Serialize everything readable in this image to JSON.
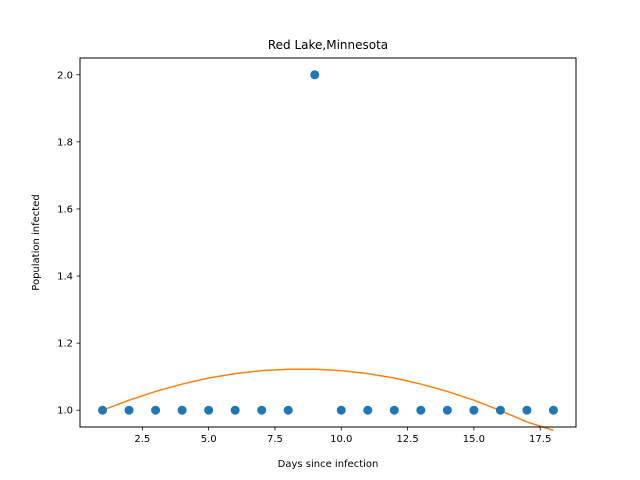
{
  "chart_data": {
    "type": "scatter",
    "title": "Red Lake,Minnesota",
    "xlabel": "Days since infection",
    "ylabel": "Population infected",
    "xlim": [
      0.15,
      18.85
    ],
    "ylim": [
      0.95,
      2.05
    ],
    "xticks": [
      2.5,
      5.0,
      7.5,
      10.0,
      12.5,
      15.0,
      17.5
    ],
    "xtick_labels": [
      "2.5",
      "5.0",
      "7.5",
      "10.0",
      "12.5",
      "15.0",
      "17.5"
    ],
    "yticks": [
      1.0,
      1.2,
      1.4,
      1.6,
      1.8,
      2.0
    ],
    "ytick_labels": [
      "1.0",
      "1.2",
      "1.4",
      "1.6",
      "1.8",
      "2.0"
    ],
    "grid": false,
    "series": [
      {
        "kind": "scatter",
        "color": "#1f77b4",
        "x": [
          1,
          2,
          3,
          4,
          5,
          6,
          7,
          8,
          9,
          10,
          11,
          12,
          13,
          14,
          15,
          16,
          17,
          18
        ],
        "y": [
          1,
          1,
          1,
          1,
          1,
          1,
          1,
          1,
          2,
          1,
          1,
          1,
          1,
          1,
          1,
          1,
          1,
          1
        ]
      },
      {
        "kind": "line",
        "color": "#ff7f0e",
        "x": [
          1,
          2,
          3,
          4,
          5,
          6,
          7,
          8,
          9,
          10,
          11,
          12,
          13,
          14,
          15,
          16,
          17,
          18
        ],
        "y": [
          1.0,
          1.03,
          1.056,
          1.078,
          1.096,
          1.109,
          1.118,
          1.122,
          1.122,
          1.118,
          1.109,
          1.096,
          1.078,
          1.056,
          1.03,
          0.999,
          0.965,
          0.94
        ]
      }
    ]
  }
}
